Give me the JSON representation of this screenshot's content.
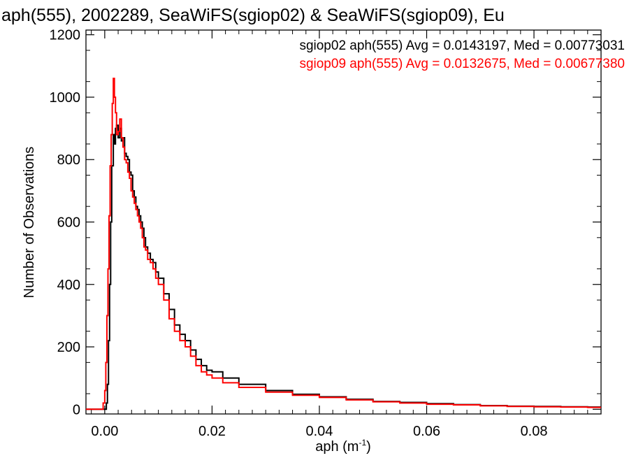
{
  "chart_data": {
    "type": "line",
    "title": "aph(555), 2002289, SeaWiFS(sgiop02) & SeaWiFS(sgiop09), Eu",
    "xlabel": "aph (m",
    "xlabel_sup": "-1",
    "xlabel_close": ")",
    "ylabel": "Number of Observations",
    "xlim": [
      -0.0035,
      0.0925
    ],
    "ylim": [
      -15,
      1215
    ],
    "xticks": [
      0.0,
      0.02,
      0.04,
      0.06,
      0.08
    ],
    "xtick_labels": [
      "0.00",
      "0.02",
      "0.04",
      "0.06",
      "0.08"
    ],
    "yticks": [
      0,
      200,
      400,
      600,
      800,
      1000,
      1200
    ],
    "ytick_labels": [
      "0",
      "200",
      "400",
      "600",
      "800",
      "1000",
      "1200"
    ],
    "grid": false,
    "legend_position": "top-right",
    "series": [
      {
        "name": "sgiop02 aph(555) Avg = 0.0143197, Med = 0.00773031",
        "color": "#000000",
        "points": [
          [
            -0.0035,
            0
          ],
          [
            0.0002,
            0
          ],
          [
            0.0003,
            20
          ],
          [
            0.0005,
            80
          ],
          [
            0.0007,
            220
          ],
          [
            0.0009,
            400
          ],
          [
            0.0011,
            600
          ],
          [
            0.0013,
            780
          ],
          [
            0.0016,
            880
          ],
          [
            0.0018,
            850
          ],
          [
            0.002,
            900
          ],
          [
            0.0022,
            910
          ],
          [
            0.0025,
            870
          ],
          [
            0.0028,
            900
          ],
          [
            0.0031,
            860
          ],
          [
            0.0034,
            870
          ],
          [
            0.0037,
            820
          ],
          [
            0.004,
            810
          ],
          [
            0.0043,
            800
          ],
          [
            0.0046,
            760
          ],
          [
            0.0049,
            750
          ],
          [
            0.0052,
            700
          ],
          [
            0.0055,
            680
          ],
          [
            0.0058,
            650
          ],
          [
            0.0061,
            640
          ],
          [
            0.0064,
            620
          ],
          [
            0.0067,
            600
          ],
          [
            0.007,
            580
          ],
          [
            0.0073,
            550
          ],
          [
            0.0076,
            520
          ],
          [
            0.008,
            500
          ],
          [
            0.0085,
            480
          ],
          [
            0.009,
            470
          ],
          [
            0.0095,
            440
          ],
          [
            0.01,
            420
          ],
          [
            0.011,
            370
          ],
          [
            0.012,
            320
          ],
          [
            0.013,
            270
          ],
          [
            0.014,
            240
          ],
          [
            0.015,
            220
          ],
          [
            0.016,
            190
          ],
          [
            0.017,
            160
          ],
          [
            0.018,
            140
          ],
          [
            0.019,
            125
          ],
          [
            0.02,
            120
          ],
          [
            0.022,
            100
          ],
          [
            0.025,
            80
          ],
          [
            0.03,
            60
          ],
          [
            0.035,
            48
          ],
          [
            0.04,
            40
          ],
          [
            0.045,
            32
          ],
          [
            0.05,
            25
          ],
          [
            0.055,
            22
          ],
          [
            0.06,
            18
          ],
          [
            0.065,
            15
          ],
          [
            0.07,
            12
          ],
          [
            0.075,
            10
          ],
          [
            0.08,
            9
          ],
          [
            0.085,
            8
          ],
          [
            0.09,
            7
          ],
          [
            0.0925,
            6
          ]
        ]
      },
      {
        "name": "sgiop09 aph(555) Avg = 0.0132675, Med = 0.00677380",
        "color": "#ff0000",
        "points": [
          [
            -0.0035,
            0
          ],
          [
            -0.0005,
            0
          ],
          [
            -0.0003,
            20
          ],
          [
            0.0,
            60
          ],
          [
            0.0002,
            150
          ],
          [
            0.0004,
            300
          ],
          [
            0.0006,
            450
          ],
          [
            0.0008,
            620
          ],
          [
            0.001,
            780
          ],
          [
            0.0012,
            880
          ],
          [
            0.0014,
            980
          ],
          [
            0.0016,
            1060
          ],
          [
            0.0018,
            1000
          ],
          [
            0.002,
            950
          ],
          [
            0.0022,
            880
          ],
          [
            0.0025,
            890
          ],
          [
            0.0028,
            930
          ],
          [
            0.0031,
            870
          ],
          [
            0.0034,
            840
          ],
          [
            0.0037,
            800
          ],
          [
            0.004,
            790
          ],
          [
            0.0043,
            760
          ],
          [
            0.0046,
            740
          ],
          [
            0.0049,
            700
          ],
          [
            0.0052,
            680
          ],
          [
            0.0055,
            660
          ],
          [
            0.0058,
            640
          ],
          [
            0.0061,
            620
          ],
          [
            0.0064,
            600
          ],
          [
            0.0067,
            580
          ],
          [
            0.007,
            550
          ],
          [
            0.0073,
            520
          ],
          [
            0.0076,
            510
          ],
          [
            0.008,
            480
          ],
          [
            0.0085,
            470
          ],
          [
            0.009,
            450
          ],
          [
            0.0095,
            420
          ],
          [
            0.01,
            400
          ],
          [
            0.011,
            350
          ],
          [
            0.012,
            290
          ],
          [
            0.013,
            250
          ],
          [
            0.014,
            220
          ],
          [
            0.015,
            200
          ],
          [
            0.016,
            170
          ],
          [
            0.017,
            140
          ],
          [
            0.018,
            120
          ],
          [
            0.019,
            110
          ],
          [
            0.02,
            100
          ],
          [
            0.022,
            85
          ],
          [
            0.025,
            70
          ],
          [
            0.03,
            55
          ],
          [
            0.035,
            45
          ],
          [
            0.04,
            38
          ],
          [
            0.045,
            30
          ],
          [
            0.05,
            24
          ],
          [
            0.055,
            20
          ],
          [
            0.06,
            16
          ],
          [
            0.065,
            14
          ],
          [
            0.07,
            11
          ],
          [
            0.075,
            9
          ],
          [
            0.08,
            8
          ],
          [
            0.085,
            7
          ],
          [
            0.09,
            6
          ],
          [
            0.0925,
            6
          ]
        ]
      }
    ]
  }
}
